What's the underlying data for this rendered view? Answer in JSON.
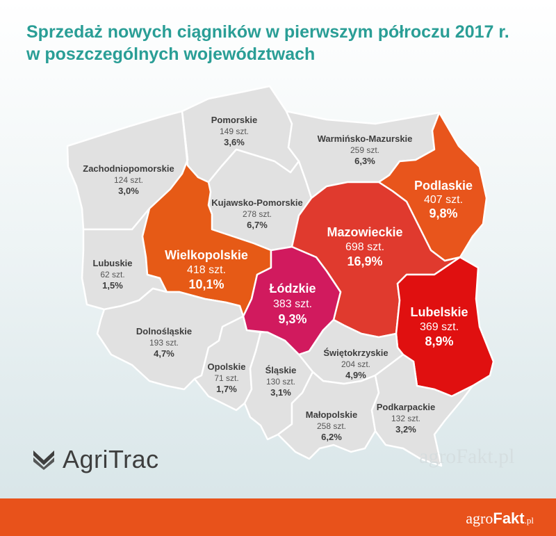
{
  "title": {
    "line1": "Sprzedaż nowych ciągników w pierwszym półroczu 2017 r.",
    "line2": "w poszczególnych województwach"
  },
  "colors": {
    "default_region": "#e1e1e1",
    "wielkopolskie": "#e65a16",
    "mazowieckie": "#e03a2e",
    "podlaskie": "#e8551c",
    "lodzkie": "#d11a5e",
    "lubelskie": "#e01010",
    "footer": "#e8521b",
    "title": "#2a9e96"
  },
  "regions": {
    "pomorskie": {
      "name": "Pomorskie",
      "count": "149 szt.",
      "pct": "3,6%"
    },
    "warminsko": {
      "name": "Warmińsko-Mazurskie",
      "count": "259 szt.",
      "pct": "6,3%"
    },
    "zachodnio": {
      "name": "Zachodniopomorskie",
      "count": "124 szt.",
      "pct": "3,0%"
    },
    "kujawsko": {
      "name": "Kujawsko-Pomorskie",
      "count": "278 szt.",
      "pct": "6,7%"
    },
    "podlaskie": {
      "name": "Podlaskie",
      "count": "407 szt.",
      "pct": "9,8%"
    },
    "mazowieckie": {
      "name": "Mazowieckie",
      "count": "698 szt.",
      "pct": "16,9%"
    },
    "wielkopolskie": {
      "name": "Wielkopolskie",
      "count": "418 szt.",
      "pct": "10,1%"
    },
    "lubuskie": {
      "name": "Lubuskie",
      "count": "62 szt.",
      "pct": "1,5%"
    },
    "lodzkie": {
      "name": "Łódzkie",
      "count": "383 szt.",
      "pct": "9,3%"
    },
    "lubelskie": {
      "name": "Lubelskie",
      "count": "369 szt.",
      "pct": "8,9%"
    },
    "dolnoslaskie": {
      "name": "Dolnośląskie",
      "count": "193 szt.",
      "pct": "4,7%"
    },
    "swietokrzyskie": {
      "name": "Świętokrzyskie",
      "count": "204 szt.",
      "pct": "4,9%"
    },
    "opolskie": {
      "name": "Opolskie",
      "count": "71 szt.",
      "pct": "1,7%"
    },
    "slaskie": {
      "name": "Śląskie",
      "count": "130 szt.",
      "pct": "3,1%"
    },
    "malopolskie": {
      "name": "Małopolskie",
      "count": "258 szt.",
      "pct": "6,2%"
    },
    "podkarpackie": {
      "name": "Podkarpackie",
      "count": "132 szt.",
      "pct": "3,2%"
    }
  },
  "brand": {
    "agritrac": "AgriTrac",
    "watermark": "agroFakt.pl",
    "footer_agro": "agro",
    "footer_fakt": "Fakt",
    "footer_pl": ".pl"
  }
}
